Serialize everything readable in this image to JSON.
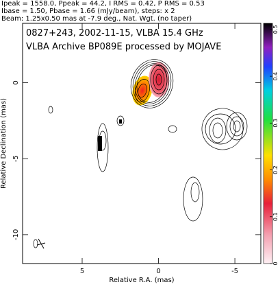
{
  "chart_data": {
    "type": "contour",
    "header": [
      "Ipeak = 1558.0, Ppeak = 44.2, I RMS = 0.42, P RMS = 0.53",
      "Ibase = 1.50, Pbase = 1.66 (mJy/beam), steps: x 2",
      "Beam: 1.25x0.50 mas at -7.9 deg., Nat. Wgt. (no taper)"
    ],
    "annotations": [
      "0827+243, 2002-11-15, VLBA 15.4 GHz",
      "VLBA Archive BP089E processed by MOJAVE"
    ],
    "xlabel": "Relative R.A. (mas)",
    "ylabel": "Relative Declination (mas)",
    "xlim": [
      8.9,
      -6.7
    ],
    "ylim": [
      -11.9,
      3.9
    ],
    "xticks": [
      5,
      0,
      -5
    ],
    "yticks": [
      0,
      -5,
      -10
    ],
    "colorbar": {
      "lim": [
        0,
        0.513
      ],
      "ticks": [
        0,
        0.1,
        0.2,
        0.3,
        0.4,
        0.5
      ]
    }
  }
}
